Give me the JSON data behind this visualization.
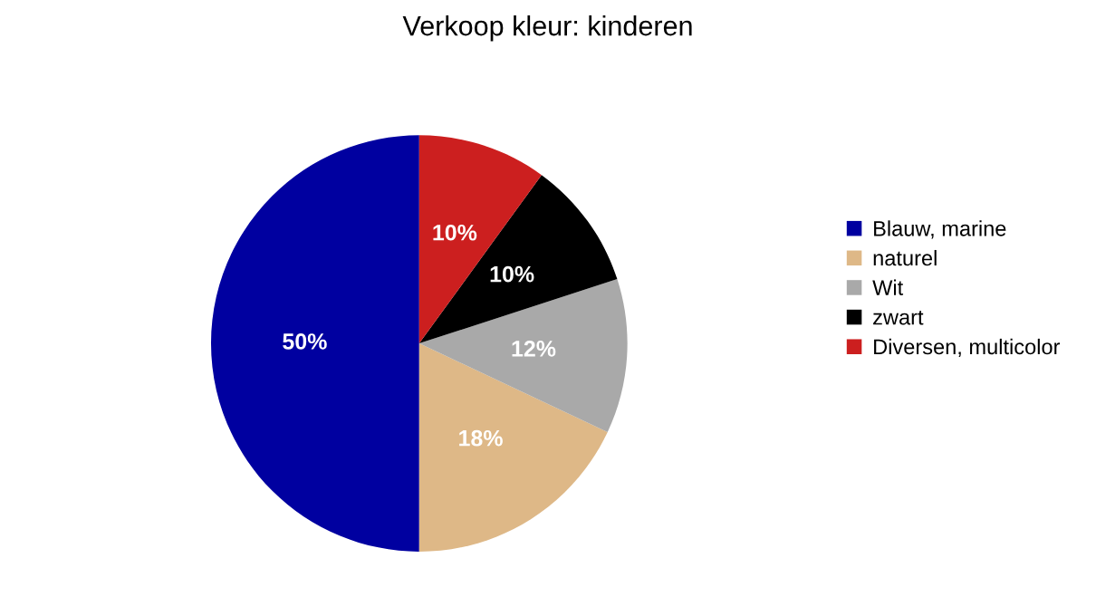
{
  "chart_data": {
    "type": "pie",
    "title": "Verkoop kleur: kinderen",
    "categories": [
      "Blauw, marine",
      "naturel",
      "Wit",
      "zwart",
      "Diversen, multicolor"
    ],
    "values": [
      50,
      18,
      12,
      10,
      10
    ],
    "colors": [
      "#0000a0",
      "#deb887",
      "#a9a9a9",
      "#000000",
      "#cc1f1f"
    ],
    "value_labels": [
      "50%",
      "18%",
      "12%",
      "10%",
      "10%"
    ],
    "legend": "right"
  }
}
